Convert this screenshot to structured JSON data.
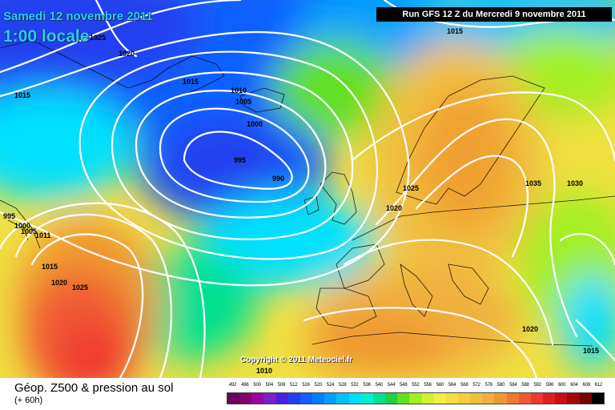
{
  "header": {
    "date": "Samedi 12 novembre 2011",
    "time": "1:00 locale",
    "run": "Run GFS 12 Z du Mercredi 9 novembre 2011"
  },
  "copyright": "Copyright © 2011 Meteociel.fr",
  "footer": {
    "product": "Géop. Z500 & pression au sol",
    "lead": "(+ 60h)"
  },
  "legend": {
    "labels": [
      "492",
      "496",
      "500",
      "504",
      "508",
      "512",
      "516",
      "520",
      "524",
      "528",
      "532",
      "536",
      "540",
      "544",
      "548",
      "552",
      "556",
      "560",
      "564",
      "568",
      "572",
      "576",
      "580",
      "584",
      "588",
      "592",
      "596",
      "600",
      "604",
      "608",
      "612"
    ],
    "colors": [
      "#6a005a",
      "#85006f",
      "#a000a0",
      "#7a20c8",
      "#4a20e0",
      "#2040f0",
      "#1060ff",
      "#0080ff",
      "#00a0ff",
      "#00c0ff",
      "#00e0ff",
      "#00f0d0",
      "#00e090",
      "#20d040",
      "#60e020",
      "#a0f020",
      "#d0f030",
      "#f0f040",
      "#f0e040",
      "#f0d040",
      "#f0c040",
      "#f0b040",
      "#f09830",
      "#f07830",
      "#f05830",
      "#f03830",
      "#e02020",
      "#c81010",
      "#a00808",
      "#780000",
      "#000000"
    ]
  },
  "isobars": [
    {
      "value": "1025"
    },
    {
      "value": "1020"
    },
    {
      "value": "1015"
    },
    {
      "value": "1015"
    },
    {
      "value": "1015"
    },
    {
      "value": "1010"
    },
    {
      "value": "1005"
    },
    {
      "value": "1000"
    },
    {
      "value": "995"
    },
    {
      "value": "990"
    },
    {
      "value": "1025"
    },
    {
      "value": "1020"
    },
    {
      "value": "1035"
    },
    {
      "value": "1030"
    },
    {
      "value": "995"
    },
    {
      "value": "1000"
    },
    {
      "value": "1005"
    },
    {
      "value": "1011"
    },
    {
      "value": "1015"
    },
    {
      "value": "1020"
    },
    {
      "value": "1025"
    },
    {
      "value": "1020"
    },
    {
      "value": "1015"
    },
    {
      "value": "1010"
    }
  ]
}
